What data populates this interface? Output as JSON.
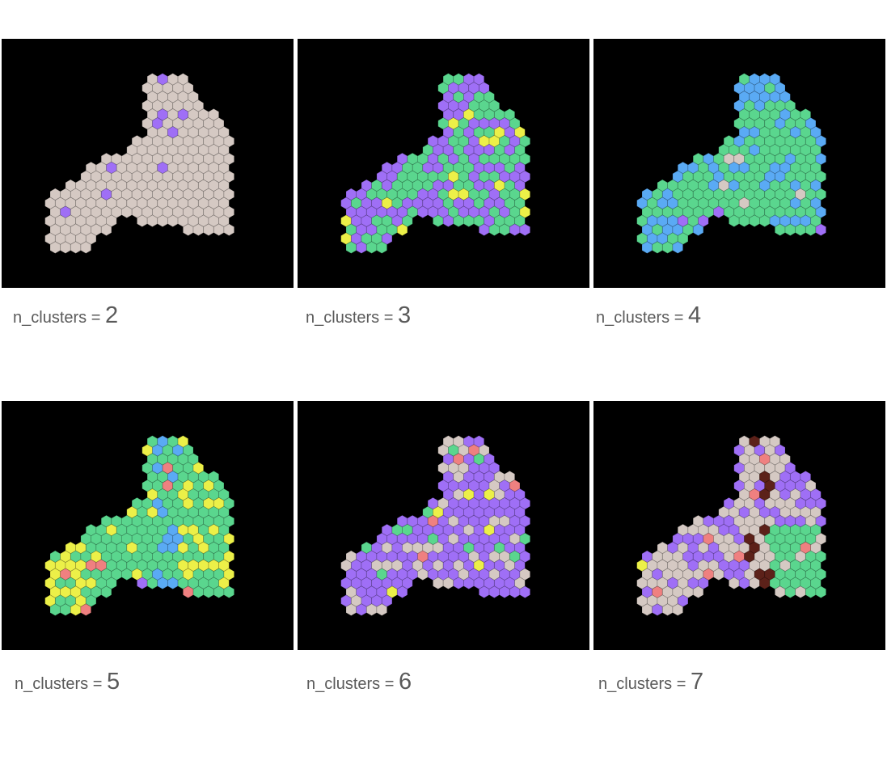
{
  "colors": {
    "beige": "#d5c9c3",
    "purple": "#9f6ff6",
    "green": "#5ad68e",
    "blue": "#5aaaf4",
    "yellow": "#ecf048",
    "red": "#ef8080",
    "brown": "#5c2119",
    "background": "#000000"
  },
  "panels": [
    {
      "label": "n_clusters = ",
      "value": "2",
      "icon": "spatial-cluster-map"
    },
    {
      "label": "n_clusters = ",
      "value": "3",
      "icon": "spatial-cluster-map"
    },
    {
      "label": "n_clusters = ",
      "value": "4",
      "icon": "spatial-cluster-map"
    },
    {
      "label": "n_clusters = ",
      "value": "5",
      "icon": "spatial-cluster-map"
    },
    {
      "label": "n_clusters = ",
      "value": "6",
      "icon": "spatial-cluster-map"
    },
    {
      "label": "n_clusters = ",
      "value": "7",
      "icon": "spatial-cluster-map"
    }
  ]
}
